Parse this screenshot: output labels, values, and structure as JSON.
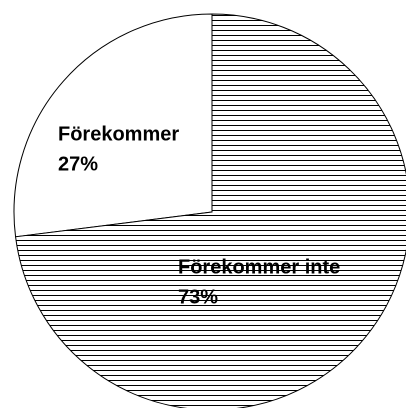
{
  "chart_data": {
    "type": "pie",
    "categories": [
      "Förekommer",
      "Förekommer inte"
    ],
    "values": [
      27,
      73
    ],
    "value_labels": [
      "27%",
      "73%"
    ],
    "colors": [
      "#ffffff",
      "#ffffff"
    ],
    "patterns": [
      "none",
      "horizontal"
    ]
  }
}
